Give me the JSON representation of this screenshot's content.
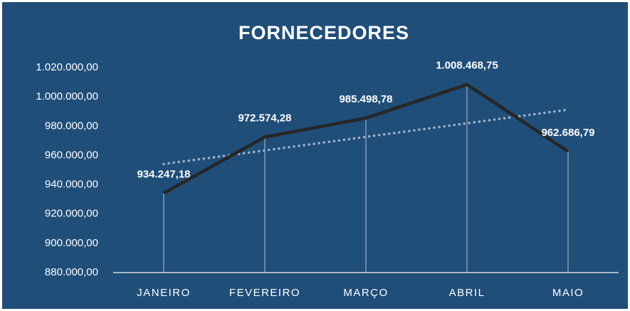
{
  "chart_data": {
    "type": "line",
    "title": "FORNECEDORES",
    "categories": [
      "JANEIRO",
      "FEVEREIRO",
      "MARÇO",
      "ABRIL",
      "MAIO"
    ],
    "values": [
      934247.18,
      972574.28,
      985498.78,
      1008468.75,
      962686.79
    ],
    "value_labels": [
      "934.247,18",
      "972.574,28",
      "985.498,78",
      "1.008.468,75",
      "962.686,79"
    ],
    "color": "#262626",
    "trendline": "linear",
    "trendline_color": "#9eb1c8",
    "drop_lines": true,
    "ylim": [
      880000,
      1020000
    ],
    "yticks": [
      {
        "value": 880000,
        "label": "880.000,00"
      },
      {
        "value": 900000,
        "label": "900.000,00"
      },
      {
        "value": 920000,
        "label": "920.000,00"
      },
      {
        "value": 940000,
        "label": "940.000,00"
      },
      {
        "value": 960000,
        "label": "960.000,00"
      },
      {
        "value": 980000,
        "label": "980.000,00"
      },
      {
        "value": 1000000,
        "label": "1.000.000,00"
      },
      {
        "value": 1020000,
        "label": "1.020.000,00"
      }
    ],
    "grid": false
  }
}
